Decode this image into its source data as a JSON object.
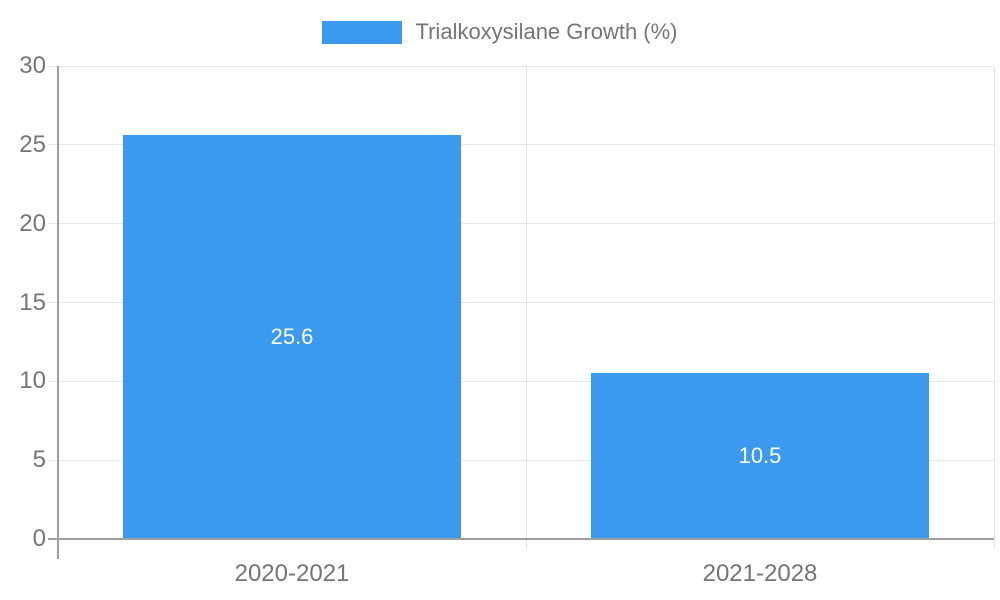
{
  "chart_data": {
    "type": "bar",
    "title": "",
    "legend": "Trialkoxysilane Growth (%)",
    "legend_position": "top-center",
    "categories": [
      "2020-2021",
      "2021-2028"
    ],
    "values": [
      25.6,
      10.5
    ],
    "value_labels": [
      "25.6",
      "10.5"
    ],
    "xlabel": "",
    "ylabel": "",
    "ylim": [
      0,
      30
    ],
    "y_ticks": [
      0,
      5,
      10,
      15,
      20,
      25,
      30
    ],
    "grid": true,
    "colors": {
      "bar": "#3b99ef",
      "axis_line": "#9e9e9e",
      "gridline": "#e6e6e6",
      "axis_text": "#757575",
      "value_label": "#ffffff",
      "background": "#ffffff"
    }
  }
}
